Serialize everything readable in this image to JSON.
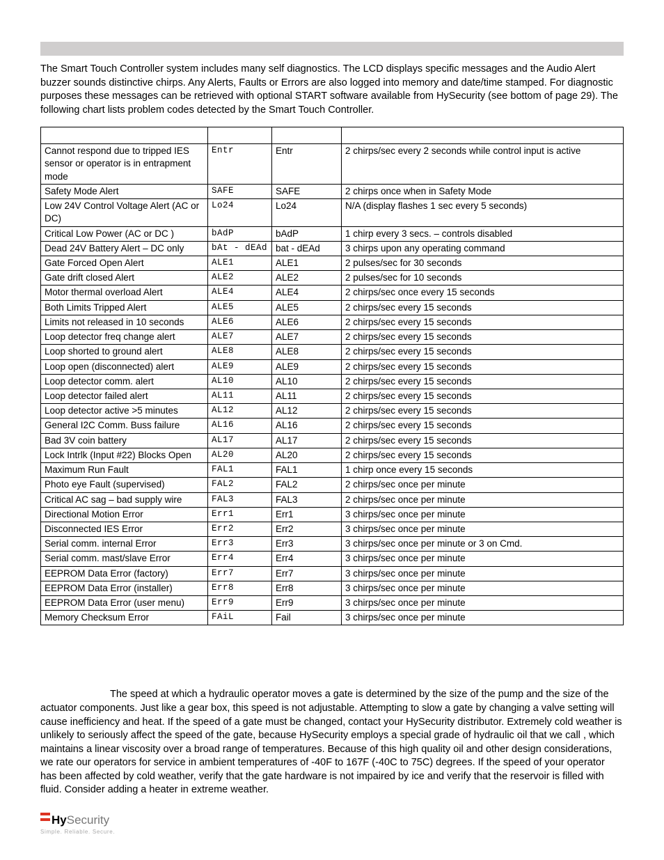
{
  "intro": "The Smart Touch Controller system includes many self diagnostics. The LCD displays specific messages and the Audio Alert buzzer sounds distinctive chirps. Any Alerts, Faults or Errors are also logged into memory and date/time stamped. For diagnostic purposes these messages can be retrieved with optional START software available from HySecurity (see bottom of page 29). The following chart lists problem codes detected by the Smart Touch Controller.",
  "table": {
    "headers": [
      "",
      "",
      "",
      ""
    ],
    "rows": [
      {
        "alert": "Cannot respond due to tripped IES sensor or operator is in entrapment mode",
        "lcd": "Entr",
        "text": "Entr",
        "buzzer": "2 chirps/sec every 2 seconds while control input is active"
      },
      {
        "alert": "Safety Mode Alert",
        "lcd": "SAFE",
        "text": "SAFE",
        "buzzer": "2 chirps once when in Safety Mode"
      },
      {
        "alert": "Low 24V Control Voltage Alert (AC or DC)",
        "lcd": "Lo24",
        "text": "Lo24",
        "buzzer": "N/A (display flashes 1 sec every 5 seconds)"
      },
      {
        "alert": "Critical Low Power (AC or DC )",
        "lcd": "bAdP",
        "text": "bAdP",
        "buzzer": "1 chirp every 3 secs. – controls disabled"
      },
      {
        "alert": "Dead 24V Battery Alert – DC only",
        "lcd": "bAt - dEAd",
        "text": "bat - dEAd",
        "buzzer": "3 chirps upon any operating command"
      },
      {
        "alert": "Gate Forced Open Alert",
        "lcd": "ALE1",
        "text": "ALE1",
        "buzzer": "2 pulses/sec for 30 seconds"
      },
      {
        "alert": "Gate drift closed Alert",
        "lcd": "ALE2",
        "text": "ALE2",
        "buzzer": "2 pulses/sec for 10 seconds"
      },
      {
        "alert": "Motor thermal overload Alert",
        "lcd": "ALE4",
        "text": "ALE4",
        "buzzer": "2 chirps/sec once every 15 seconds"
      },
      {
        "alert": "Both Limits Tripped Alert",
        "lcd": "ALE5",
        "text": "ALE5",
        "buzzer": "2 chirps/sec every 15 seconds"
      },
      {
        "alert": "Limits not released in 10 seconds",
        "lcd": "ALE6",
        "text": "ALE6",
        "buzzer": "2 chirps/sec every 15 seconds"
      },
      {
        "alert": "Loop detector freq change alert",
        "lcd": "ALE7",
        "text": "ALE7",
        "buzzer": "2 chirps/sec every 15 seconds"
      },
      {
        "alert": "Loop shorted to ground alert",
        "lcd": "ALE8",
        "text": "ALE8",
        "buzzer": "2 chirps/sec every 15 seconds"
      },
      {
        "alert": "Loop open (disconnected) alert",
        "lcd": "ALE9",
        "text": "ALE9",
        "buzzer": "2 chirps/sec every 15 seconds"
      },
      {
        "alert": "Loop detector comm. alert",
        "lcd": "AL10",
        "text": "AL10",
        "buzzer": "2 chirps/sec every 15 seconds"
      },
      {
        "alert": "Loop detector failed alert",
        "lcd": "AL11",
        "text": "AL11",
        "buzzer": "2 chirps/sec every 15 seconds"
      },
      {
        "alert": "Loop detector active >5 minutes",
        "lcd": "AL12",
        "text": "AL12",
        "buzzer": "2 chirps/sec every 15 seconds"
      },
      {
        "alert": "General I2C Comm. Buss failure",
        "lcd": "AL16",
        "text": "AL16",
        "buzzer": "2 chirps/sec every 15 seconds"
      },
      {
        "alert": "Bad 3V coin battery",
        "lcd": "AL17",
        "text": "AL17",
        "buzzer": "2 chirps/sec every 15 seconds"
      },
      {
        "alert": "Lock Intrlk (Input #22) Blocks Open",
        "lcd": "AL20",
        "text": "AL20",
        "buzzer": "2 chirps/sec every 15 seconds"
      },
      {
        "alert": "Maximum Run Fault",
        "lcd": "FAL1",
        "text": "FAL1",
        "buzzer": "1 chirp once every 15 seconds"
      },
      {
        "alert": "Photo eye Fault (supervised)",
        "lcd": "FAL2",
        "text": "FAL2",
        "buzzer": "2 chirps/sec once per minute"
      },
      {
        "alert": "Critical AC sag – bad supply wire",
        "lcd": "FAL3",
        "text": "FAL3",
        "buzzer": "2 chirps/sec once per minute"
      },
      {
        "alert": "Directional Motion Error",
        "lcd": "Err1",
        "text": "Err1",
        "buzzer": "3 chirps/sec once per minute"
      },
      {
        "alert": "Disconnected IES Error",
        "lcd": "Err2",
        "text": "Err2",
        "buzzer": "3 chirps/sec once per minute"
      },
      {
        "alert": "Serial comm. internal Error",
        "lcd": "Err3",
        "text": "Err3",
        "buzzer": "3 chirps/sec once per minute or 3 on Cmd."
      },
      {
        "alert": "Serial comm. mast/slave Error",
        "lcd": "Err4",
        "text": "Err4",
        "buzzer": "3 chirps/sec once per minute"
      },
      {
        "alert": "EEPROM Data Error (factory)",
        "lcd": "Err7",
        "text": "Err7",
        "buzzer": "3 chirps/sec once per minute"
      },
      {
        "alert": "EEPROM Data Error (installer)",
        "lcd": "Err8",
        "text": "Err8",
        "buzzer": "3 chirps/sec once per minute"
      },
      {
        "alert": "EEPROM Data Error (user menu)",
        "lcd": "Err9",
        "text": "Err9",
        "buzzer": "3 chirps/sec once per minute"
      },
      {
        "alert": "Memory Checksum Error",
        "lcd": "FAiL",
        "text": "Fail",
        "buzzer": "3 chirps/sec once per minute"
      }
    ]
  },
  "para2_a": "The speed at which a hydraulic operator moves a gate is determined by the size of the pump and the size of the actuator components.  Just like a gear box, this speed is not adjustable.  Attempting to slow a gate by changing a valve setting will cause inefficiency and heat.  If the speed of a gate must be changed, contact your HySecurity distributor. Extremely cold weather is unlikely to seriously affect the speed of the gate, because HySecurity employs a special grade of hydraulic oil that we call ",
  "para2_b": ", which maintains a linear viscosity over a broad range of temperatures.  Because of this high quality oil and other design considerations, we rate our operators for service in ambient temperatures of -40F to 167F (-40C to 75C) degrees. If the speed of your operator has been affected by cold weather, verify that the gate hardware is not impaired by ice and verify that the reservoir is filled with ",
  "para2_c": " fluid. Consider adding a heater in extreme weather.",
  "footer": {
    "hy": "Hy",
    "security": "Security",
    "tagline": "Simple. Reliable. Secure."
  }
}
